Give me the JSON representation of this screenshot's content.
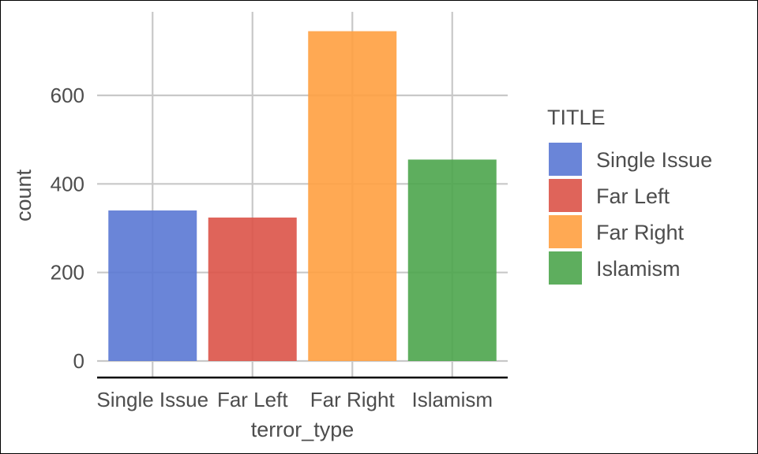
{
  "chart_data": {
    "type": "bar",
    "title": "",
    "xlabel": "terror_type",
    "ylabel": "count",
    "categories": [
      "Single Issue",
      "Far Left",
      "Far Right",
      "Islamism"
    ],
    "values": [
      340,
      324,
      745,
      455
    ],
    "colors": [
      "#5a78d4",
      "#dc5348",
      "#ffa040",
      "#4ca54c"
    ],
    "yticks": [
      0,
      200,
      400,
      600
    ],
    "ylim": [
      0,
      780
    ],
    "grid": true,
    "legend": {
      "title": "TITLE",
      "position": "right",
      "entries": [
        "Single Issue",
        "Far Left",
        "Far Right",
        "Islamism"
      ]
    }
  }
}
